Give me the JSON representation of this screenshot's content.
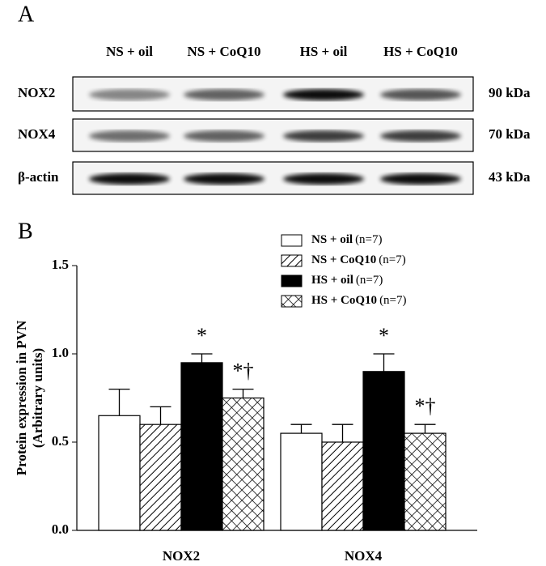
{
  "panel_a": {
    "label": "A",
    "lanes": [
      "NS + oil",
      "NS + CoQ10",
      "HS + oil",
      "HS + CoQ10"
    ],
    "rows": [
      {
        "name": "NOX2",
        "size": "90 kDa"
      },
      {
        "name": "NOX4",
        "size": "70 kDa"
      },
      {
        "name": "β-actin",
        "size": "43 kDa"
      }
    ]
  },
  "chart_data": {
    "type": "bar",
    "panel_label": "B",
    "ylabel": [
      "Protein expression in PVN",
      "(Arbitrary units)"
    ],
    "categories": [
      "NOX2",
      "NOX4"
    ],
    "series": [
      {
        "name": "NS + oil",
        "sample_size_label": "(n=7)",
        "color": "#ffffff",
        "pattern": "none",
        "values": [
          0.65,
          0.55
        ],
        "errors": [
          0.15,
          0.05
        ]
      },
      {
        "name": "NS + CoQ10",
        "sample_size_label": "(n=7)",
        "color": "#ffffff",
        "pattern": "diagonal",
        "values": [
          0.6,
          0.5
        ],
        "errors": [
          0.1,
          0.1
        ]
      },
      {
        "name": "HS + oil",
        "sample_size_label": "(n=7)",
        "color": "#000000",
        "pattern": "none",
        "values": [
          0.95,
          0.9
        ],
        "errors": [
          0.05,
          0.1
        ],
        "annotations": [
          "*",
          "*"
        ]
      },
      {
        "name": "HS + CoQ10",
        "sample_size_label": "(n=7)",
        "color": "#ffffff",
        "pattern": "crosshatch",
        "values": [
          0.75,
          0.55
        ],
        "errors": [
          0.05,
          0.05
        ],
        "annotations": [
          "*†",
          "*†"
        ]
      }
    ],
    "ylim": [
      0,
      1.5
    ],
    "yticks": [
      {
        "value": 0,
        "label": "0.0"
      },
      {
        "value": 0.5,
        "label": "0.5"
      },
      {
        "value": 1,
        "label": "1.0"
      },
      1.5
    ],
    "legend": "top-right"
  }
}
